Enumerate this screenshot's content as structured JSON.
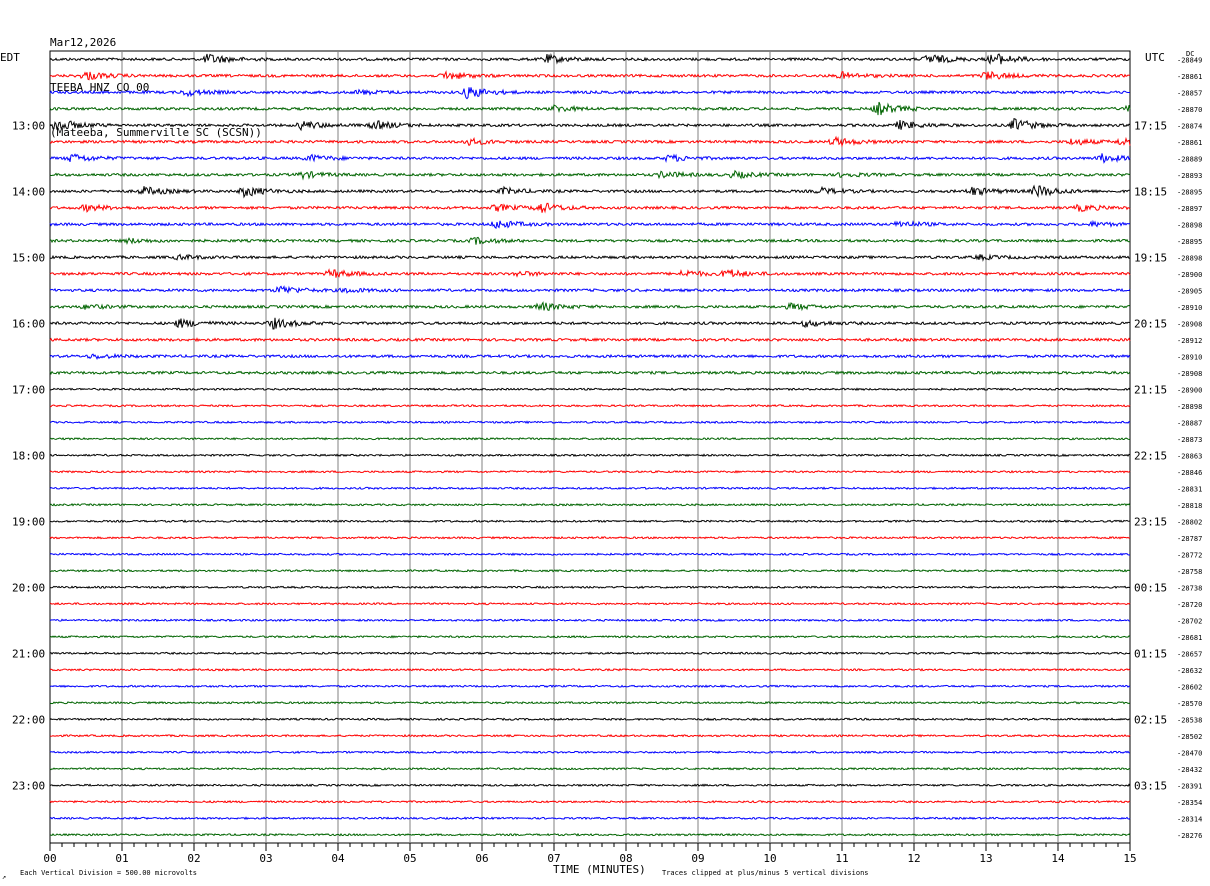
{
  "header": {
    "date": "Mar12,2026",
    "station": "TEEBA HNZ CO 00",
    "location": "(Mateeba, Summerville SC (SCSN))"
  },
  "labels": {
    "left_tz": "EDT",
    "right_tz": "UTC",
    "dc": "DC",
    "xlabel": "TIME (MINUTES)",
    "footer_left": "Each Vertical Division =  500.00 microvolts",
    "footer_right": "Traces clipped at plus/minus 5 vertical divisions",
    "corner_mark": "↗"
  },
  "colors": {
    "trace_cycle": [
      "#000000",
      "#ff0000",
      "#0000ff",
      "#006400"
    ],
    "grid": "#808080"
  },
  "chart_data": {
    "type": "line",
    "title": "TEEBA HNZ CO 00",
    "xlabel": "TIME (MINUTES)",
    "xlim": [
      0,
      15
    ],
    "x_ticks": [
      "00",
      "01",
      "02",
      "03",
      "04",
      "05",
      "06",
      "07",
      "08",
      "09",
      "10",
      "11",
      "12",
      "13",
      "14",
      "15"
    ],
    "left_time_labels": [
      "13:00",
      "14:00",
      "15:00",
      "16:00",
      "17:00",
      "18:00",
      "19:00",
      "20:00",
      "21:00",
      "22:00",
      "23:00"
    ],
    "right_time_labels": [
      "17:15",
      "18:15",
      "19:15",
      "20:15",
      "21:15",
      "22:15",
      "23:15",
      "00:15",
      "01:15",
      "02:15",
      "03:15"
    ],
    "dc_offsets": [
      -28849,
      -28861,
      -28857,
      -28870,
      -28874,
      -28861,
      -28889,
      -28893,
      -28895,
      -28897,
      -28898,
      -28895,
      -28898,
      -28900,
      -28905,
      -28910,
      -28908,
      -28912,
      -28910,
      -28908,
      -28900,
      -28898,
      -28887,
      -28873,
      -28863,
      -28846,
      -28831,
      -28818,
      -28802,
      -28787,
      -28772,
      -28758,
      -28738,
      -28720,
      -28702,
      -28681,
      -28657,
      -28632,
      -28602,
      -28570,
      -28538,
      -28502,
      -28470,
      -28432,
      -28391,
      -28354,
      -28314,
      -28276
    ],
    "trace_count": 48,
    "minutes_per_trace": 15,
    "events": [
      {
        "trace": 0,
        "minute": 2.2,
        "amp": 5
      },
      {
        "trace": 0,
        "minute": 6.9,
        "amp": 4
      },
      {
        "trace": 0,
        "minute": 12.2,
        "amp": 5
      },
      {
        "trace": 0,
        "minute": 13.1,
        "amp": 6
      },
      {
        "trace": 1,
        "minute": 0.5,
        "amp": 4
      },
      {
        "trace": 1,
        "minute": 5.5,
        "amp": 4
      },
      {
        "trace": 1,
        "minute": 11.0,
        "amp": 3
      },
      {
        "trace": 1,
        "minute": 13.0,
        "amp": 4
      },
      {
        "trace": 2,
        "minute": 1.9,
        "amp": 3
      },
      {
        "trace": 2,
        "minute": 4.3,
        "amp": 2
      },
      {
        "trace": 2,
        "minute": 5.8,
        "amp": 6
      },
      {
        "trace": 3,
        "minute": 7.0,
        "amp": 3
      },
      {
        "trace": 3,
        "minute": 11.5,
        "amp": 6
      },
      {
        "trace": 3,
        "minute": 15.0,
        "amp": 4
      },
      {
        "trace": 4,
        "minute": 0.1,
        "amp": 6
      },
      {
        "trace": 4,
        "minute": 3.5,
        "amp": 4
      },
      {
        "trace": 4,
        "minute": 4.5,
        "amp": 4
      },
      {
        "trace": 4,
        "minute": 11.8,
        "amp": 4
      },
      {
        "trace": 4,
        "minute": 13.4,
        "amp": 6
      },
      {
        "trace": 5,
        "minute": 5.8,
        "amp": 3
      },
      {
        "trace": 5,
        "minute": 10.9,
        "amp": 4
      },
      {
        "trace": 5,
        "minute": 14.2,
        "amp": 3
      },
      {
        "trace": 5,
        "minute": 14.9,
        "amp": 4
      },
      {
        "trace": 6,
        "minute": 0.3,
        "amp": 4
      },
      {
        "trace": 6,
        "minute": 3.6,
        "amp": 3
      },
      {
        "trace": 6,
        "minute": 8.6,
        "amp": 3
      },
      {
        "trace": 6,
        "minute": 14.6,
        "amp": 4
      },
      {
        "trace": 7,
        "minute": 3.5,
        "amp": 3
      },
      {
        "trace": 7,
        "minute": 8.5,
        "amp": 3
      },
      {
        "trace": 7,
        "minute": 9.5,
        "amp": 3
      },
      {
        "trace": 7,
        "minute": 11.0,
        "amp": 2
      },
      {
        "trace": 8,
        "minute": 1.3,
        "amp": 4
      },
      {
        "trace": 8,
        "minute": 2.7,
        "amp": 5
      },
      {
        "trace": 8,
        "minute": 6.3,
        "amp": 3
      },
      {
        "trace": 8,
        "minute": 10.7,
        "amp": 3
      },
      {
        "trace": 8,
        "minute": 12.8,
        "amp": 4
      },
      {
        "trace": 8,
        "minute": 13.7,
        "amp": 6
      },
      {
        "trace": 9,
        "minute": 0.5,
        "amp": 3
      },
      {
        "trace": 9,
        "minute": 6.2,
        "amp": 3
      },
      {
        "trace": 9,
        "minute": 6.8,
        "amp": 5
      },
      {
        "trace": 9,
        "minute": 14.3,
        "amp": 3
      },
      {
        "trace": 10,
        "minute": 6.2,
        "amp": 4
      },
      {
        "trace": 10,
        "minute": 11.8,
        "amp": 3
      },
      {
        "trace": 10,
        "minute": 14.5,
        "amp": 2
      },
      {
        "trace": 11,
        "minute": 1.1,
        "amp": 2
      },
      {
        "trace": 11,
        "minute": 5.9,
        "amp": 3
      },
      {
        "trace": 12,
        "minute": 1.8,
        "amp": 2
      },
      {
        "trace": 12,
        "minute": 12.9,
        "amp": 2
      },
      {
        "trace": 13,
        "minute": 3.9,
        "amp": 4
      },
      {
        "trace": 13,
        "minute": 6.5,
        "amp": 2
      },
      {
        "trace": 13,
        "minute": 8.8,
        "amp": 3
      },
      {
        "trace": 13,
        "minute": 9.4,
        "amp": 4
      },
      {
        "trace": 14,
        "minute": 3.2,
        "amp": 4
      },
      {
        "trace": 14,
        "minute": 4.1,
        "amp": 2
      },
      {
        "trace": 15,
        "minute": 0.5,
        "amp": 2
      },
      {
        "trace": 15,
        "minute": 6.8,
        "amp": 4
      },
      {
        "trace": 15,
        "minute": 10.3,
        "amp": 3
      },
      {
        "trace": 16,
        "minute": 1.8,
        "amp": 4
      },
      {
        "trace": 16,
        "minute": 3.1,
        "amp": 5
      },
      {
        "trace": 16,
        "minute": 10.5,
        "amp": 3
      },
      {
        "trace": 18,
        "minute": 0.6,
        "amp": 2
      }
    ]
  }
}
